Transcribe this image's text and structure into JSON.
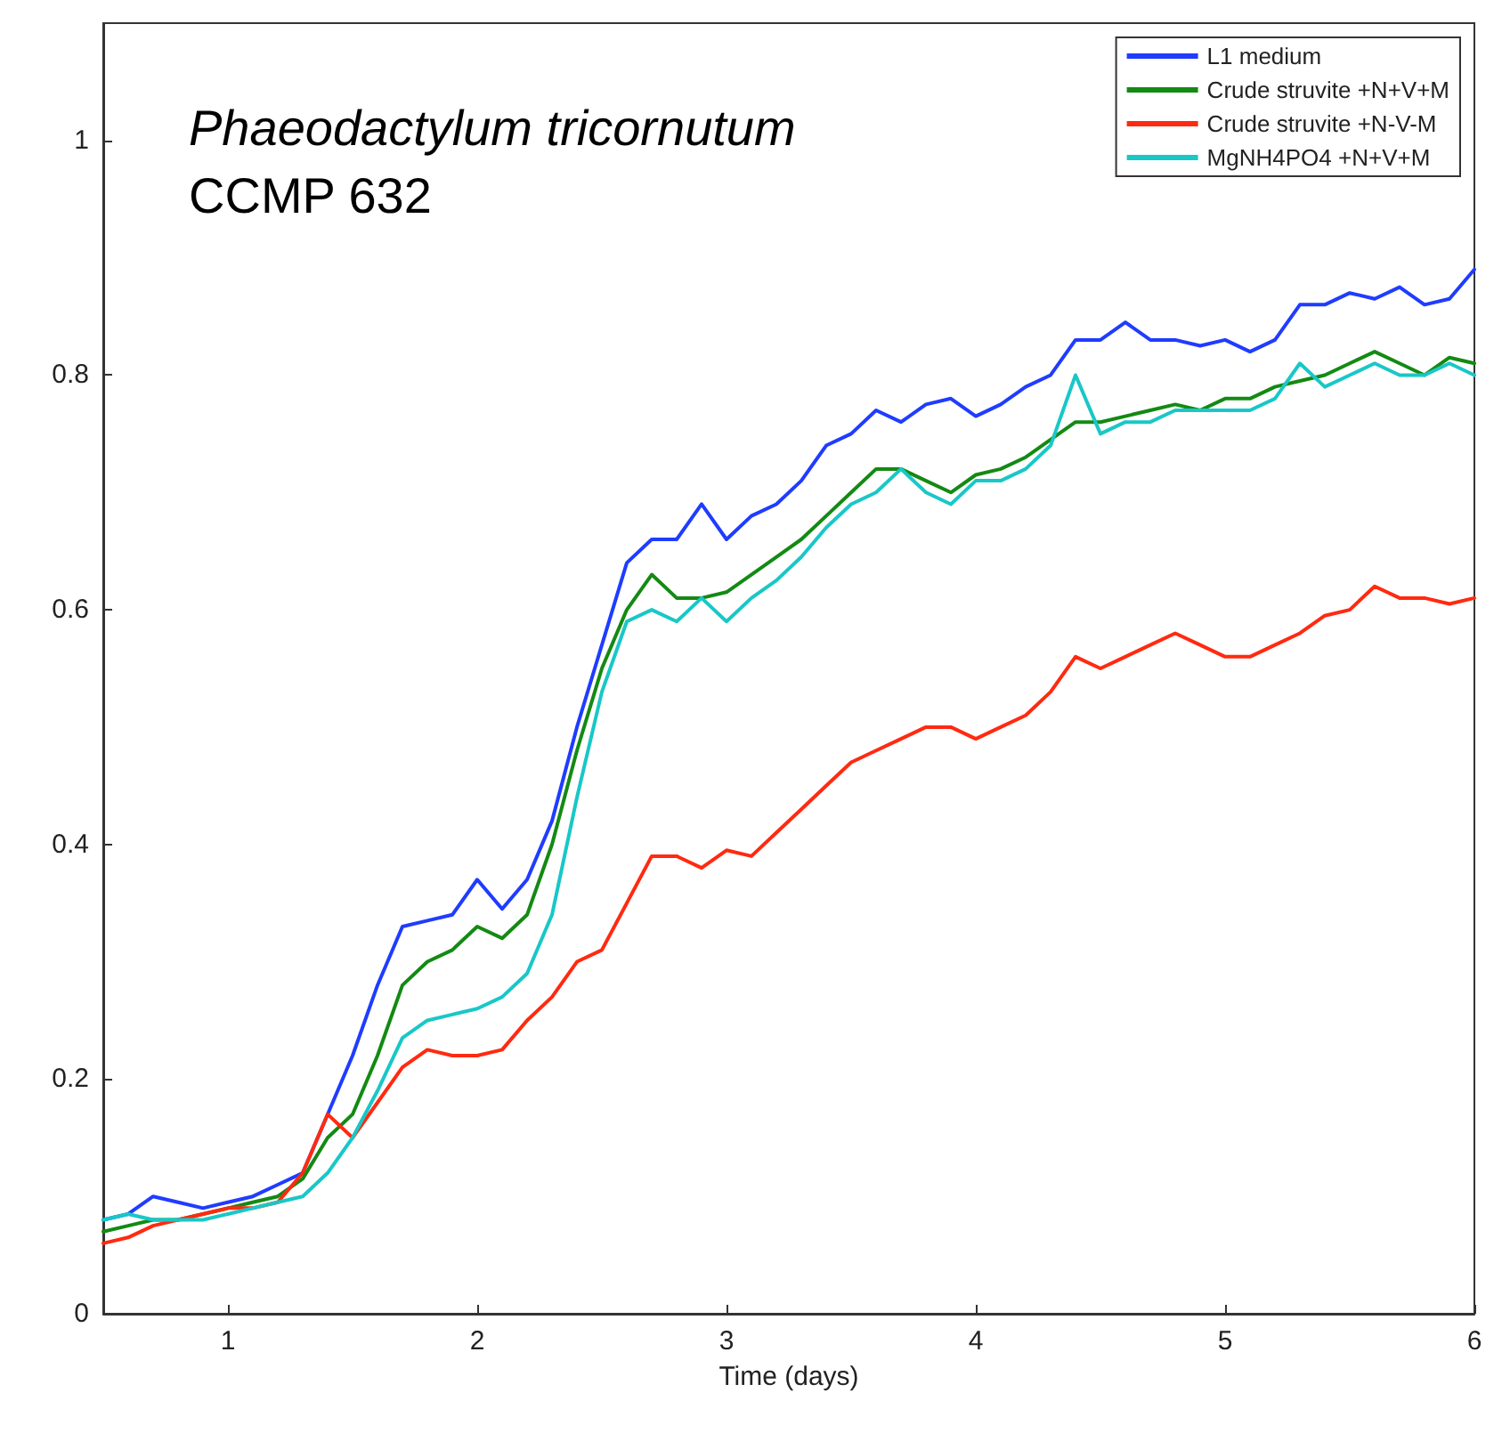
{
  "chart_data": {
    "type": "line",
    "xlabel": "Time (days)",
    "annotations": [
      "Phaeodactylum tricornutum",
      "CCMP 632"
    ],
    "x": [
      0.5,
      0.6,
      0.7,
      0.8,
      0.9,
      1.0,
      1.1,
      1.2,
      1.3,
      1.4,
      1.5,
      1.6,
      1.7,
      1.8,
      1.9,
      2.0,
      2.1,
      2.2,
      2.3,
      2.4,
      2.5,
      2.6,
      2.7,
      2.8,
      2.9,
      3.0,
      3.1,
      3.2,
      3.3,
      3.4,
      3.5,
      3.6,
      3.7,
      3.8,
      3.9,
      4.0,
      4.1,
      4.2,
      4.3,
      4.4,
      4.5,
      4.6,
      4.7,
      4.8,
      4.9,
      5.0,
      5.1,
      5.2,
      5.3,
      5.4,
      5.5,
      5.6,
      5.7,
      5.8,
      5.9,
      6.0
    ],
    "series": [
      {
        "name": "L1 medium",
        "color": "#1f3cff",
        "values": [
          0.08,
          0.085,
          0.1,
          0.095,
          0.09,
          0.095,
          0.1,
          0.11,
          0.12,
          0.17,
          0.22,
          0.28,
          0.33,
          0.335,
          0.34,
          0.37,
          0.345,
          0.37,
          0.42,
          0.5,
          0.57,
          0.64,
          0.66,
          0.66,
          0.69,
          0.66,
          0.68,
          0.69,
          0.71,
          0.74,
          0.75,
          0.77,
          0.76,
          0.775,
          0.78,
          0.765,
          0.775,
          0.79,
          0.8,
          0.83,
          0.83,
          0.845,
          0.83,
          0.83,
          0.825,
          0.83,
          0.82,
          0.83,
          0.86,
          0.86,
          0.87,
          0.865,
          0.875,
          0.86,
          0.865,
          0.89
        ]
      },
      {
        "name": "Crude struvite +N+V+M",
        "color": "#138a13",
        "values": [
          0.07,
          0.075,
          0.08,
          0.08,
          0.085,
          0.09,
          0.095,
          0.1,
          0.115,
          0.15,
          0.17,
          0.22,
          0.28,
          0.3,
          0.31,
          0.33,
          0.32,
          0.34,
          0.4,
          0.48,
          0.55,
          0.6,
          0.63,
          0.61,
          0.61,
          0.615,
          0.63,
          0.645,
          0.66,
          0.68,
          0.7,
          0.72,
          0.72,
          0.71,
          0.7,
          0.715,
          0.72,
          0.73,
          0.745,
          0.76,
          0.76,
          0.765,
          0.77,
          0.775,
          0.77,
          0.78,
          0.78,
          0.79,
          0.795,
          0.8,
          0.81,
          0.82,
          0.81,
          0.8,
          0.815,
          0.81
        ]
      },
      {
        "name": "Crude struvite +N-V-M",
        "color": "#ff2a10",
        "values": [
          0.06,
          0.065,
          0.075,
          0.08,
          0.085,
          0.09,
          0.09,
          0.095,
          0.12,
          0.17,
          0.15,
          0.18,
          0.21,
          0.225,
          0.22,
          0.22,
          0.225,
          0.25,
          0.27,
          0.3,
          0.31,
          0.35,
          0.39,
          0.39,
          0.38,
          0.395,
          0.39,
          0.41,
          0.43,
          0.45,
          0.47,
          0.48,
          0.49,
          0.5,
          0.5,
          0.49,
          0.5,
          0.51,
          0.53,
          0.56,
          0.55,
          0.56,
          0.57,
          0.58,
          0.57,
          0.56,
          0.56,
          0.57,
          0.58,
          0.595,
          0.6,
          0.62,
          0.61,
          0.61,
          0.605,
          0.61
        ]
      },
      {
        "name": "MgNH4PO4 +N+V+M",
        "color": "#19c7c7",
        "values": [
          0.08,
          0.085,
          0.08,
          0.08,
          0.08,
          0.085,
          0.09,
          0.095,
          0.1,
          0.12,
          0.15,
          0.19,
          0.235,
          0.25,
          0.255,
          0.26,
          0.27,
          0.29,
          0.34,
          0.44,
          0.53,
          0.59,
          0.6,
          0.59,
          0.61,
          0.59,
          0.61,
          0.625,
          0.645,
          0.67,
          0.69,
          0.7,
          0.72,
          0.7,
          0.69,
          0.71,
          0.71,
          0.72,
          0.74,
          0.8,
          0.75,
          0.76,
          0.76,
          0.77,
          0.77,
          0.77,
          0.77,
          0.78,
          0.81,
          0.79,
          0.8,
          0.81,
          0.8,
          0.8,
          0.81,
          0.8
        ]
      }
    ],
    "xlim": [
      0.5,
      6
    ],
    "xticks": [
      1,
      2,
      3,
      4,
      5,
      6
    ],
    "ylim": [
      0,
      1.1
    ],
    "yticks": [
      0,
      0.2,
      0.4,
      0.6,
      0.8,
      1
    ],
    "legend": "top right",
    "grid": false,
    "marker": "none",
    "line_style": "solid"
  }
}
